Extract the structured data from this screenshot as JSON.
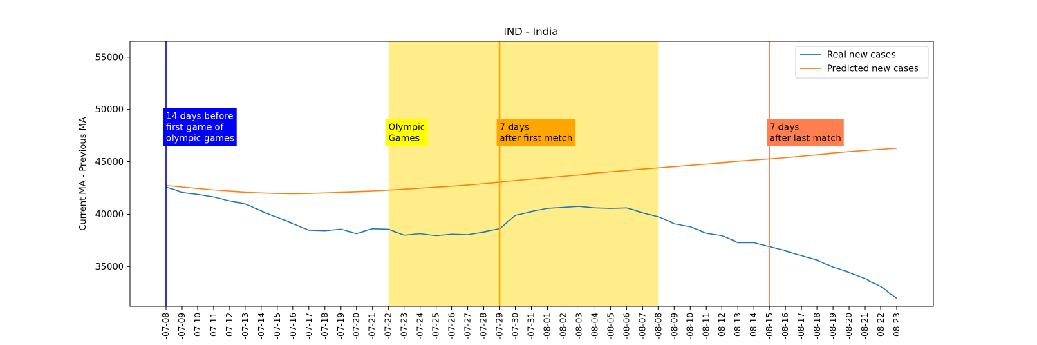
{
  "chart_data": {
    "type": "line",
    "title": "IND - India",
    "xlabel": "",
    "ylabel": "Current MA - Previous MA",
    "x": [
      "2021-07-08",
      "2021-07-09",
      "2021-07-10",
      "2021-07-11",
      "2021-07-12",
      "2021-07-13",
      "2021-07-14",
      "2021-07-15",
      "2021-07-16",
      "2021-07-17",
      "2021-07-18",
      "2021-07-19",
      "2021-07-20",
      "2021-07-21",
      "2021-07-22",
      "2021-07-23",
      "2021-07-24",
      "2021-07-25",
      "2021-07-26",
      "2021-07-27",
      "2021-07-28",
      "2021-07-29",
      "2021-07-30",
      "2021-07-31",
      "2021-08-01",
      "2021-08-02",
      "2021-08-03",
      "2021-08-04",
      "2021-08-05",
      "2021-08-06",
      "2021-08-07",
      "2021-08-08",
      "2021-08-09",
      "2021-08-10",
      "2021-08-11",
      "2021-08-12",
      "2021-08-13",
      "2021-08-14",
      "2021-08-15",
      "2021-08-16",
      "2021-08-17",
      "2021-08-18",
      "2021-08-19",
      "2021-08-20",
      "2021-08-21",
      "2021-08-22",
      "2021-08-23"
    ],
    "tick_labels": [
      "-07-08",
      "-07-09",
      "-07-10",
      "-07-11",
      "-07-12",
      "-07-13",
      "-07-14",
      "-07-15",
      "-07-16",
      "-07-17",
      "-07-18",
      "-07-19",
      "-07-20",
      "-07-21",
      "-07-22",
      "-07-23",
      "-07-24",
      "-07-25",
      "-07-26",
      "-07-27",
      "-07-28",
      "-07-29",
      "-07-30",
      "-07-31",
      "-08-01",
      "-08-02",
      "-08-03",
      "-08-04",
      "-08-05",
      "-08-06",
      "-08-07",
      "-08-08",
      "-08-09",
      "-08-10",
      "-08-11",
      "-08-12",
      "-08-13",
      "-08-14",
      "-08-15",
      "-08-16",
      "-08-17",
      "-08-18",
      "-08-19",
      "-08-20",
      "-08-21",
      "-08-22",
      "-08-23"
    ],
    "y_ticks": [
      35000,
      40000,
      45000,
      50000,
      55000
    ],
    "ylim": [
      31200,
      56500
    ],
    "legend_position": "top-right",
    "grid": false,
    "series": [
      {
        "name": "Real new cases",
        "color": "#1f77b4",
        "values": [
          42600,
          42100,
          41900,
          41650,
          41250,
          41000,
          40300,
          39700,
          39100,
          38450,
          38400,
          38550,
          38150,
          38600,
          38550,
          38000,
          38150,
          37950,
          38100,
          38050,
          38300,
          38600,
          39900,
          40250,
          40550,
          40650,
          40750,
          40600,
          40550,
          40600,
          40150,
          39750,
          39100,
          38800,
          38200,
          37950,
          37300,
          37300,
          36900,
          36500,
          36050,
          35600,
          34950,
          34450,
          33850,
          33100,
          31950
        ]
      },
      {
        "name": "Predicted new cases",
        "color": "#ff7f0e",
        "values": [
          42750,
          42600,
          42450,
          42300,
          42200,
          42100,
          42050,
          42000,
          41980,
          42000,
          42050,
          42100,
          42150,
          42200,
          42280,
          42380,
          42480,
          42580,
          42680,
          42800,
          42930,
          43060,
          43200,
          43340,
          43480,
          43620,
          43760,
          43900,
          44030,
          44160,
          44300,
          44420,
          44550,
          44680,
          44800,
          44920,
          45040,
          45160,
          45280,
          45400,
          45540,
          45680,
          45820,
          45950,
          46070,
          46190,
          46300
        ]
      }
    ],
    "shaded_region": {
      "start": "2021-07-22",
      "end": "2021-08-08",
      "color": "#ffe13a",
      "opacity": 0.6
    },
    "vertical_lines": [
      {
        "x": "2021-07-08",
        "color": "#0000cc"
      },
      {
        "x": "2021-07-29",
        "color": "#ffa500"
      },
      {
        "x": "2021-08-15",
        "color": "#ff7f50"
      }
    ],
    "annotations": [
      {
        "x": "2021-07-08",
        "lines": [
          "14 days before",
          "first game of",
          "olympic games"
        ],
        "bg": "#0000ff",
        "fg": "#ffffff"
      },
      {
        "x": "2021-07-22",
        "lines": [
          "Olympic",
          "Games"
        ],
        "bg": "#ffff00",
        "fg": "#000000"
      },
      {
        "x": "2021-07-29",
        "lines": [
          "7 days",
          "after first metch"
        ],
        "bg": "#ffa500",
        "fg": "#000000"
      },
      {
        "x": "2021-08-15",
        "lines": [
          "7 days",
          "after last match"
        ],
        "bg": "#ff7f50",
        "fg": "#000000"
      }
    ]
  }
}
